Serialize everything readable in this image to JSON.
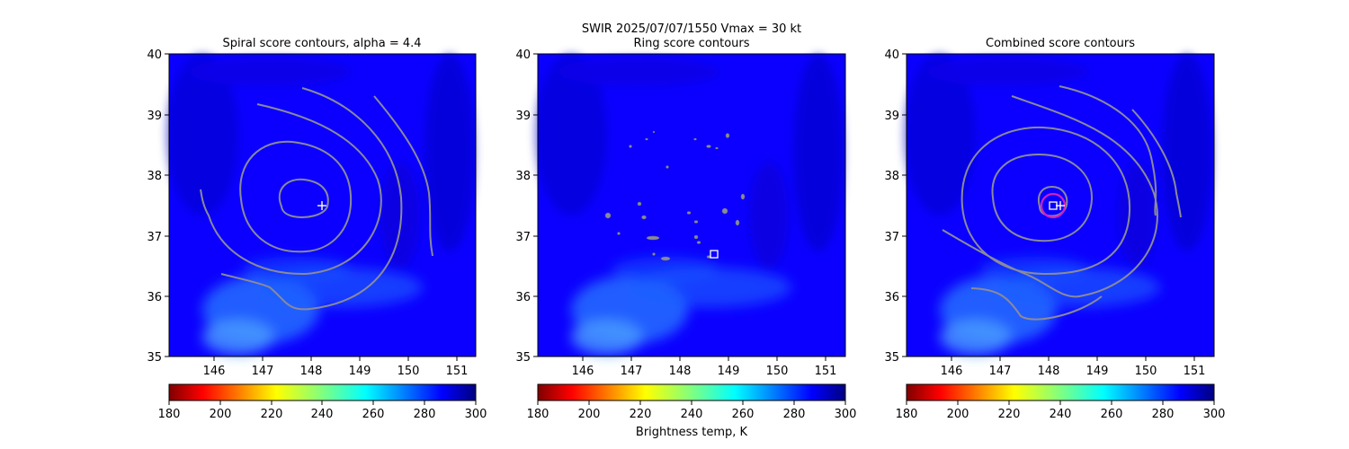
{
  "suptitle_line1": "SWIR  2025/07/07/1550    Vmax = 30 kt",
  "colorbar_label": "Brightness temp, K",
  "chart_data": [
    {
      "type": "heatmap",
      "title": "Spiral score contours, alpha =  4.4",
      "xlim": [
        145.1,
        151.4
      ],
      "ylim": [
        35,
        40
      ],
      "xticks": [
        "146",
        "147",
        "148",
        "149",
        "150",
        "151"
      ],
      "yticks": [
        "35",
        "36",
        "37",
        "38",
        "39",
        "40"
      ],
      "overlay": "contours",
      "markers": [
        {
          "type": "plus",
          "x": 148.27,
          "y": 37.5
        }
      ],
      "colorbar": {
        "colormap": "jet_r",
        "range": [
          180,
          300
        ],
        "ticks": [
          "180",
          "200",
          "220",
          "240",
          "260",
          "280",
          "300"
        ]
      }
    },
    {
      "type": "heatmap",
      "title": "Ring score contours",
      "xlim": [
        145.1,
        151.4
      ],
      "ylim": [
        35,
        40
      ],
      "xticks": [
        "146",
        "147",
        "148",
        "149",
        "150",
        "151"
      ],
      "yticks": [
        "35",
        "36",
        "37",
        "38",
        "39",
        "40"
      ],
      "overlay": "ring-blobs",
      "markers": [
        {
          "type": "square",
          "x": 148.72,
          "y": 36.7
        }
      ],
      "colorbar": {
        "colormap": "jet_r",
        "range": [
          180,
          300
        ],
        "ticks": [
          "180",
          "200",
          "220",
          "240",
          "260",
          "280",
          "300"
        ]
      }
    },
    {
      "type": "heatmap",
      "title": "Combined score contours",
      "xlim": [
        145.1,
        151.4
      ],
      "ylim": [
        35,
        40
      ],
      "xticks": [
        "146",
        "147",
        "148",
        "149",
        "150",
        "151"
      ],
      "yticks": [
        "35",
        "36",
        "37",
        "38",
        "39",
        "40"
      ],
      "overlay": "contours",
      "markers": [
        {
          "type": "square",
          "x": 148.12,
          "y": 37.5
        },
        {
          "type": "plus",
          "x": 148.27,
          "y": 37.5
        },
        {
          "type": "ring",
          "x": 148.12,
          "y": 37.5
        }
      ],
      "colorbar": {
        "colormap": "jet_r",
        "range": [
          180,
          300
        ],
        "ticks": [
          "180",
          "200",
          "220",
          "240",
          "260",
          "280",
          "300"
        ]
      }
    }
  ],
  "colors": {
    "background_blue": "#0b00ff",
    "contour": "#8a8a9a",
    "ring_marker": "#d020c0",
    "cloud_light": "#3a8cff"
  }
}
